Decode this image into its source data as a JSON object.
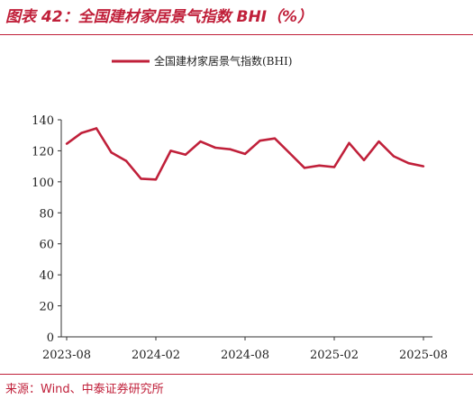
{
  "header": {
    "figure_title": "图表 42：全国建材家居景气指数 BHI（%）"
  },
  "footer": {
    "source": "来源：Wind、中泰证券研究所"
  },
  "colors": {
    "accent": "#c0203a",
    "series": "#c0203a"
  },
  "chart_data": {
    "type": "line",
    "title": "",
    "xlabel": "",
    "ylabel": "",
    "ylim": [
      0,
      140
    ],
    "yticks": [
      0,
      20,
      40,
      60,
      80,
      100,
      120,
      140
    ],
    "xticks": [
      "2023-08",
      "2024-02",
      "2024-08",
      "2025-02",
      "2025-08"
    ],
    "grid": false,
    "legend": "top-center",
    "x": [
      "2023-08",
      "2023-09",
      "2023-10",
      "2023-11",
      "2023-12",
      "2024-01",
      "2024-02",
      "2024-03",
      "2024-04",
      "2024-05",
      "2024-06",
      "2024-07",
      "2024-08",
      "2024-09",
      "2024-10",
      "2024-11",
      "2024-12",
      "2025-01",
      "2025-02",
      "2025-03",
      "2025-04",
      "2025-05",
      "2025-06",
      "2025-07",
      "2025-08"
    ],
    "series": [
      {
        "name": "全国建材家居景气指数(BHI)",
        "values": [
          124.5,
          131.5,
          134.5,
          119,
          113.5,
          102,
          101.5,
          120,
          117.5,
          126,
          122,
          121,
          118,
          126.5,
          128,
          118.5,
          109,
          110.5,
          109.5,
          125,
          114,
          126,
          116.5,
          112,
          110
        ]
      }
    ]
  }
}
